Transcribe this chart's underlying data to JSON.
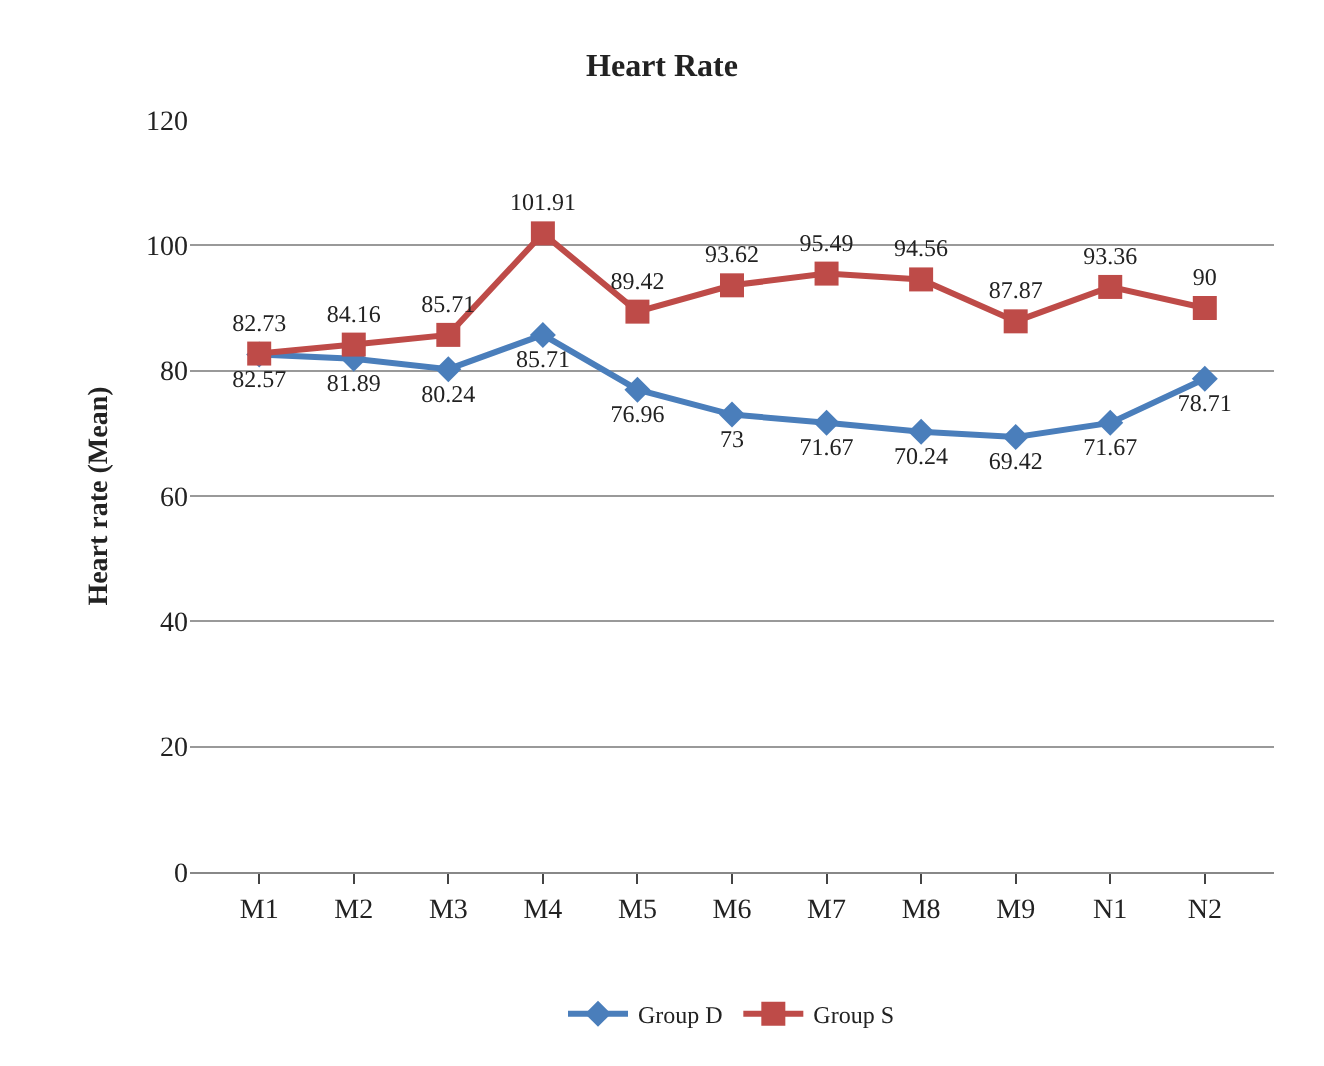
{
  "chart_data": {
    "type": "line",
    "title": "Heart Rate",
    "ylabel": "Heart rate (Mean)",
    "categories": [
      "M1",
      "M2",
      "M3",
      "M4",
      "M5",
      "M6",
      "M7",
      "M8",
      "M9",
      "N1",
      "N2"
    ],
    "series": [
      {
        "name": "Group D",
        "color": "#4a7ebb",
        "marker": "diamond",
        "values": [
          82.57,
          81.89,
          80.24,
          85.71,
          76.96,
          73,
          71.67,
          70.24,
          69.42,
          71.67,
          78.71
        ]
      },
      {
        "name": "Group S",
        "color": "#be4b48",
        "marker": "square",
        "values": [
          82.73,
          84.16,
          85.71,
          101.91,
          89.42,
          93.62,
          95.49,
          94.56,
          87.87,
          93.36,
          90
        ]
      }
    ],
    "ylim": [
      0,
      120
    ],
    "yticks": [
      0,
      20,
      40,
      60,
      80,
      100,
      120
    ],
    "grid": "y",
    "legend": "bottom",
    "data_labels": true,
    "line_style": "solid"
  }
}
